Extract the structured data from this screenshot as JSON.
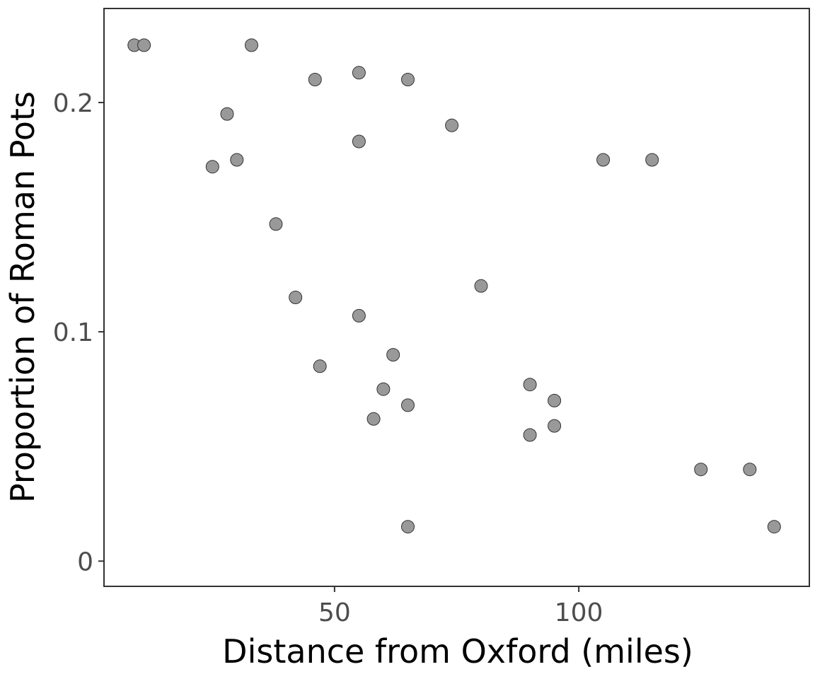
{
  "chart_data": {
    "type": "scatter",
    "title": "",
    "xlabel": "Distance from Oxford (miles)",
    "ylabel": "Proportion of Roman Pots",
    "xlim": [
      2.8,
      147.2
    ],
    "ylim": [
      -0.011,
      0.241
    ],
    "x_ticks": [
      50,
      100
    ],
    "x_tick_labels": [
      "50",
      "100"
    ],
    "y_ticks": [
      0,
      0.1,
      0.2
    ],
    "y_tick_labels": [
      "0",
      "0.1",
      "0.2"
    ],
    "grid": false,
    "legend": "none",
    "point_color": "#999999",
    "point_outline": "#333333",
    "series": [
      {
        "points": [
          [
            9,
            0.225
          ],
          [
            11,
            0.225
          ],
          [
            33,
            0.225
          ],
          [
            46,
            0.21
          ],
          [
            55,
            0.213
          ],
          [
            65,
            0.21
          ],
          [
            28,
            0.195
          ],
          [
            74,
            0.19
          ],
          [
            55,
            0.183
          ],
          [
            25,
            0.172
          ],
          [
            30,
            0.175
          ],
          [
            105,
            0.175
          ],
          [
            115,
            0.175
          ],
          [
            38,
            0.147
          ],
          [
            80,
            0.12
          ],
          [
            42,
            0.115
          ],
          [
            55,
            0.107
          ],
          [
            62,
            0.09
          ],
          [
            47,
            0.085
          ],
          [
            60,
            0.075
          ],
          [
            90,
            0.077
          ],
          [
            95,
            0.07
          ],
          [
            65,
            0.068
          ],
          [
            58,
            0.062
          ],
          [
            95,
            0.059
          ],
          [
            90,
            0.055
          ],
          [
            125,
            0.04
          ],
          [
            135,
            0.04
          ],
          [
            65,
            0.015
          ],
          [
            140,
            0.015
          ]
        ]
      }
    ]
  }
}
